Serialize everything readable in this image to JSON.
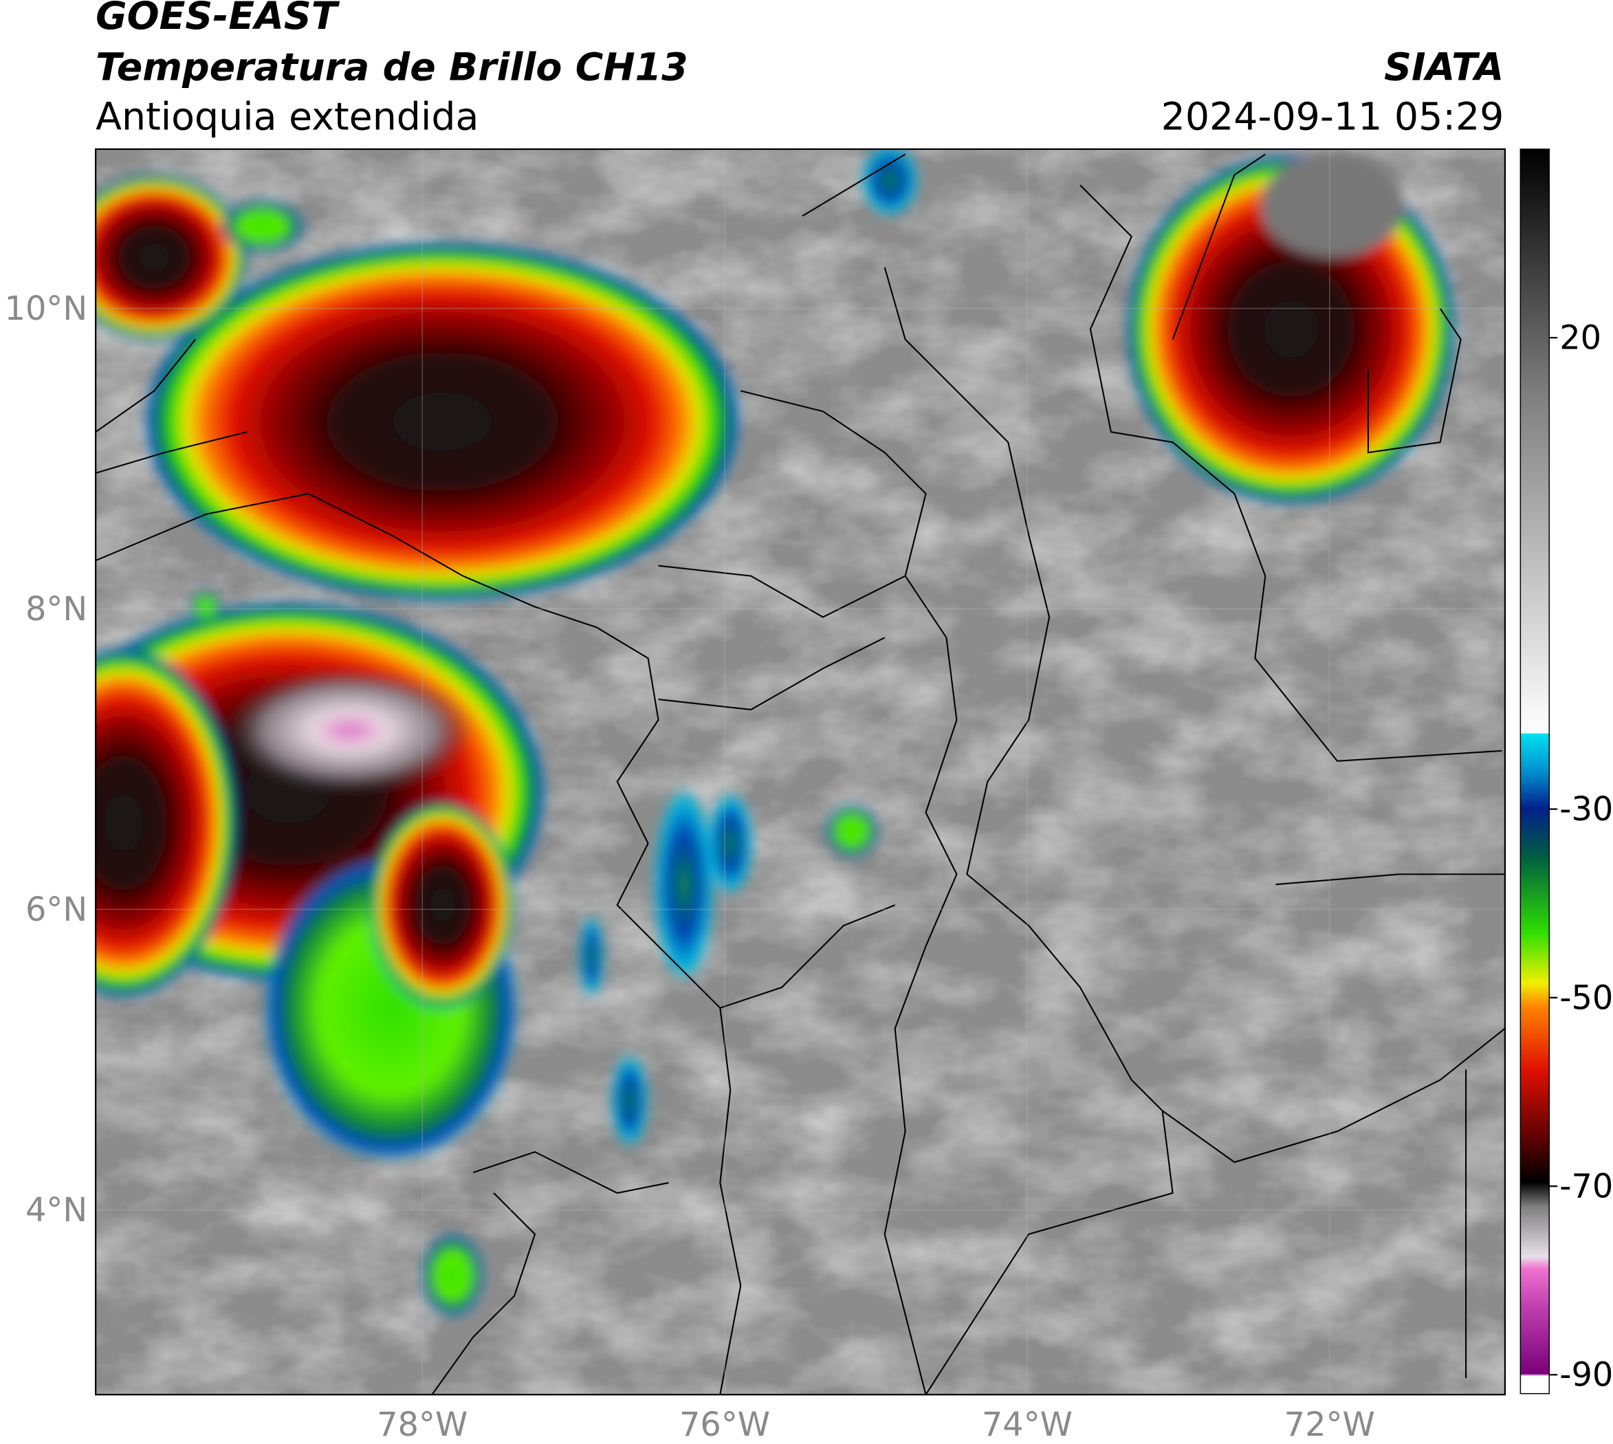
{
  "header": {
    "satellite": "GOES-EAST",
    "product": "Temperatura de Brillo CH13",
    "region": "Antioquia extendida",
    "organization": "SIATA",
    "datetime": "2024-09-11 05:29"
  },
  "map": {
    "lat_range": [
      2.77,
      11.06
    ],
    "lon_range": [
      -80.16,
      -70.84
    ],
    "lat_ticks": [
      {
        "value": 4,
        "label": "4°N"
      },
      {
        "value": 6,
        "label": "6°N"
      },
      {
        "value": 8,
        "label": "8°N"
      },
      {
        "value": 10,
        "label": "10°N"
      }
    ],
    "lon_ticks": [
      {
        "value": -78,
        "label": "78°W"
      },
      {
        "value": -76,
        "label": "76°W"
      },
      {
        "value": -74,
        "label": "74°W"
      },
      {
        "value": -72,
        "label": "72°W"
      }
    ]
  },
  "colorbar": {
    "range": [
      -92,
      40
    ],
    "ticks": [
      -90,
      -70,
      -50,
      -30,
      20
    ]
  }
}
